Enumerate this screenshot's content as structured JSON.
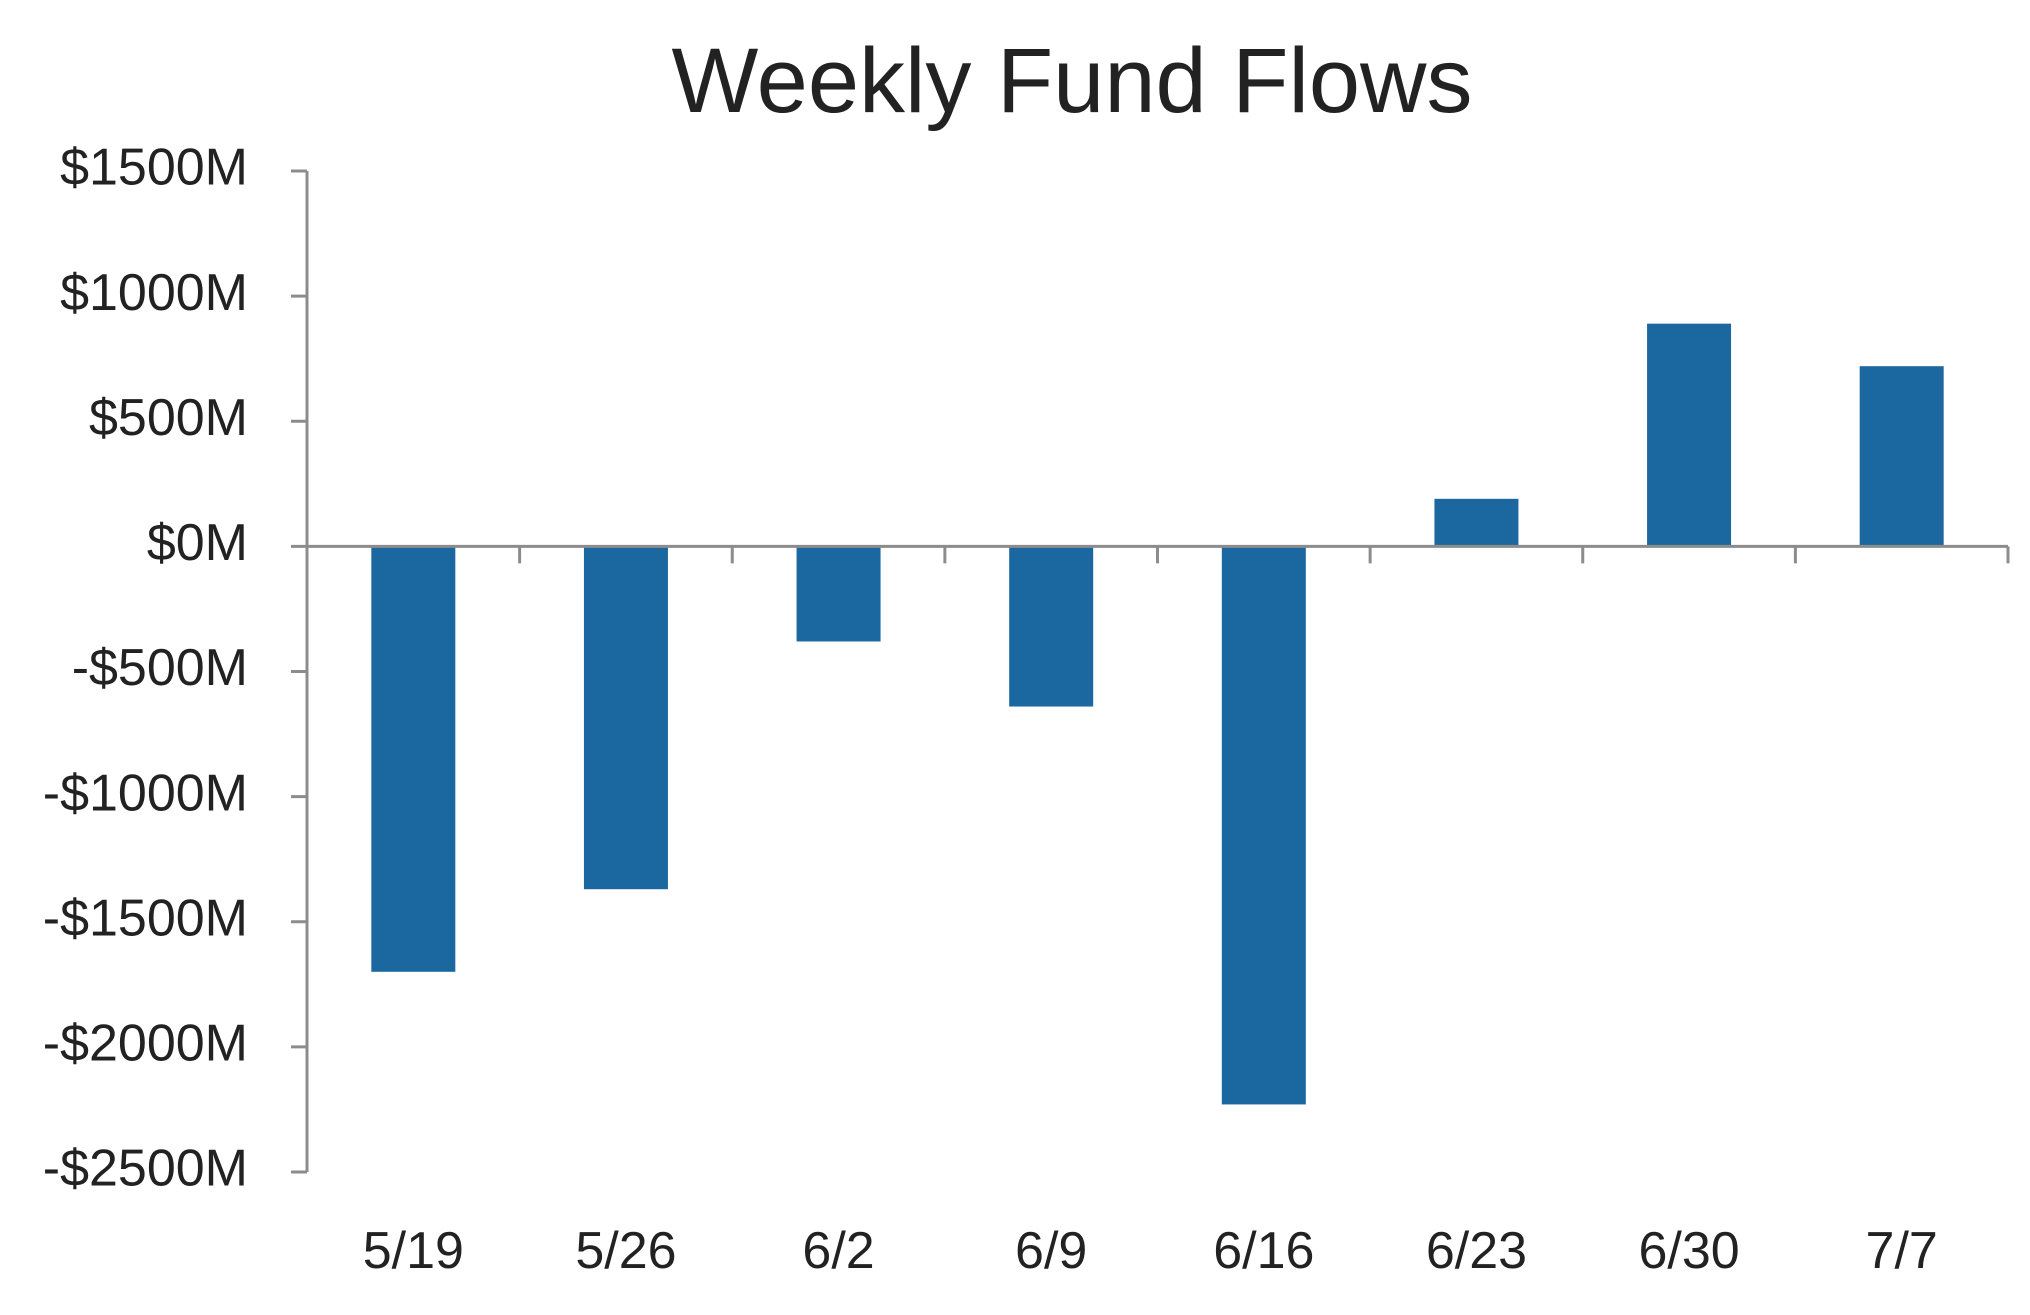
{
  "chart_data": {
    "type": "bar",
    "title": "Weekly Fund Flows",
    "xlabel": "",
    "ylabel": "",
    "categories": [
      "5/19",
      "5/26",
      "6/2",
      "6/9",
      "6/16",
      "6/23",
      "6/30",
      "7/7"
    ],
    "series": [
      {
        "values": [
          -1700,
          -1370,
          -380,
          -640,
          -2230,
          190,
          890,
          720
        ],
        "color": "#1b67a0"
      }
    ],
    "ylim": [
      -2500,
      1500
    ],
    "yticks": [
      1500,
      1000,
      500,
      0,
      -500,
      -1000,
      -1500,
      -2000,
      -2500
    ],
    "ytick_labels": [
      "$1500M",
      "$1000M",
      "$500M",
      "$0M",
      "-$500M",
      "-$1000M",
      "-$1500M",
      "-$2000M",
      "-$2500M"
    ],
    "grid": false,
    "legend": "none"
  },
  "colors": {
    "bar": "#1b67a0",
    "axis": "#8c8c8c",
    "text": "#222222",
    "background": "#ffffff"
  }
}
